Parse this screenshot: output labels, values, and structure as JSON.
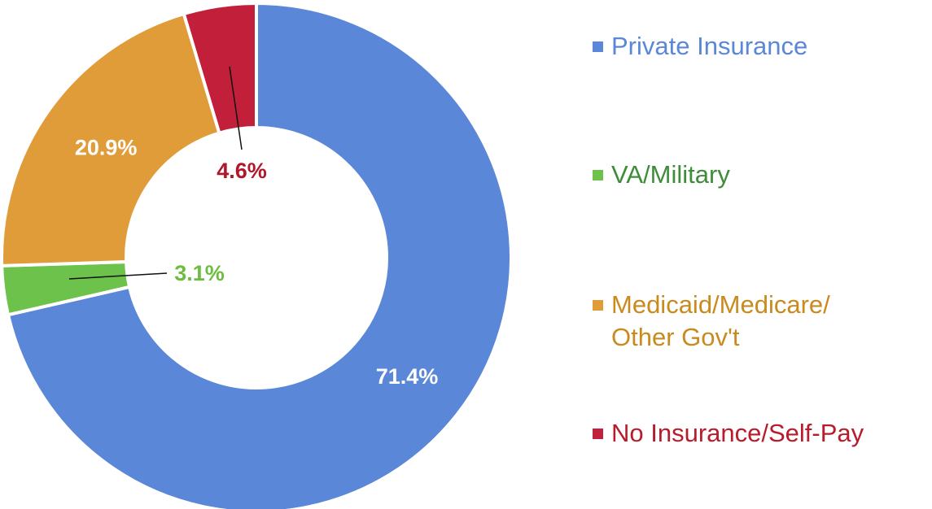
{
  "chart_data": {
    "type": "donut",
    "categories": [
      "Private Insurance",
      "VA/Military",
      "Medicaid/Medicare/ Other Gov't",
      "No Insurance/Self-Pay"
    ],
    "values": [
      71.4,
      3.1,
      20.9,
      4.6
    ],
    "value_labels": [
      "71.4%",
      "3.1%",
      "20.9%",
      "4.6%"
    ],
    "colors": [
      "#5b87d8",
      "#6cc24a",
      "#e09c38",
      "#c11f3a"
    ],
    "label_colors": [
      "#ffffff",
      "#6cbd3f",
      "#ffffff",
      "#b0182a"
    ],
    "legend_colors": [
      "#5b87d8",
      "#3f8c3a",
      "#c98a1e",
      "#b81c2c"
    ]
  }
}
